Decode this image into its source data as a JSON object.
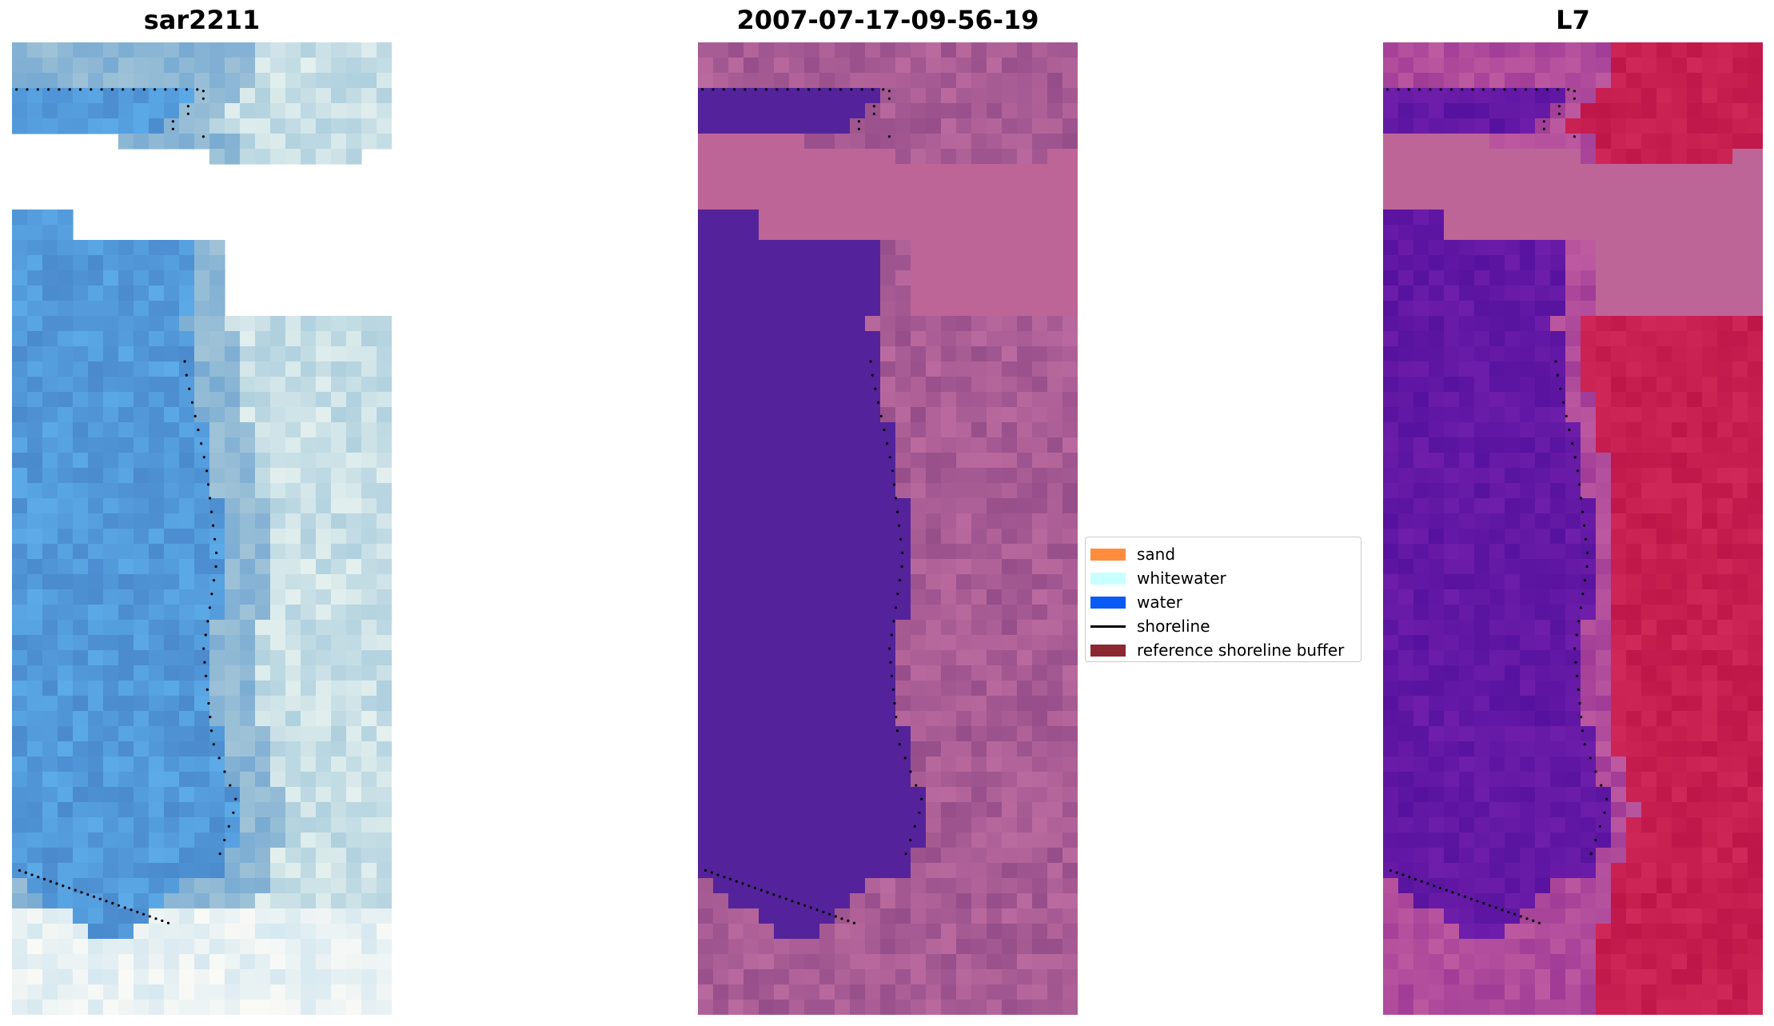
{
  "panels": [
    {
      "title": "sar2211",
      "style": "rgb"
    },
    {
      "title": "2007-07-17-09-56-19",
      "style": "classified"
    },
    {
      "title": "L7",
      "style": "mndwi"
    }
  ],
  "legend": {
    "items": [
      {
        "label": "sand",
        "type": "patch",
        "color": "#ff8c3c"
      },
      {
        "label": "whitewater",
        "type": "patch",
        "color": "#c8ffff"
      },
      {
        "label": "water",
        "type": "patch",
        "color": "#0a5af5"
      },
      {
        "label": "shoreline",
        "type": "line",
        "color": "#000000"
      },
      {
        "label": "reference shoreline buffer",
        "type": "patch",
        "color": "#8c2832"
      }
    ]
  }
}
